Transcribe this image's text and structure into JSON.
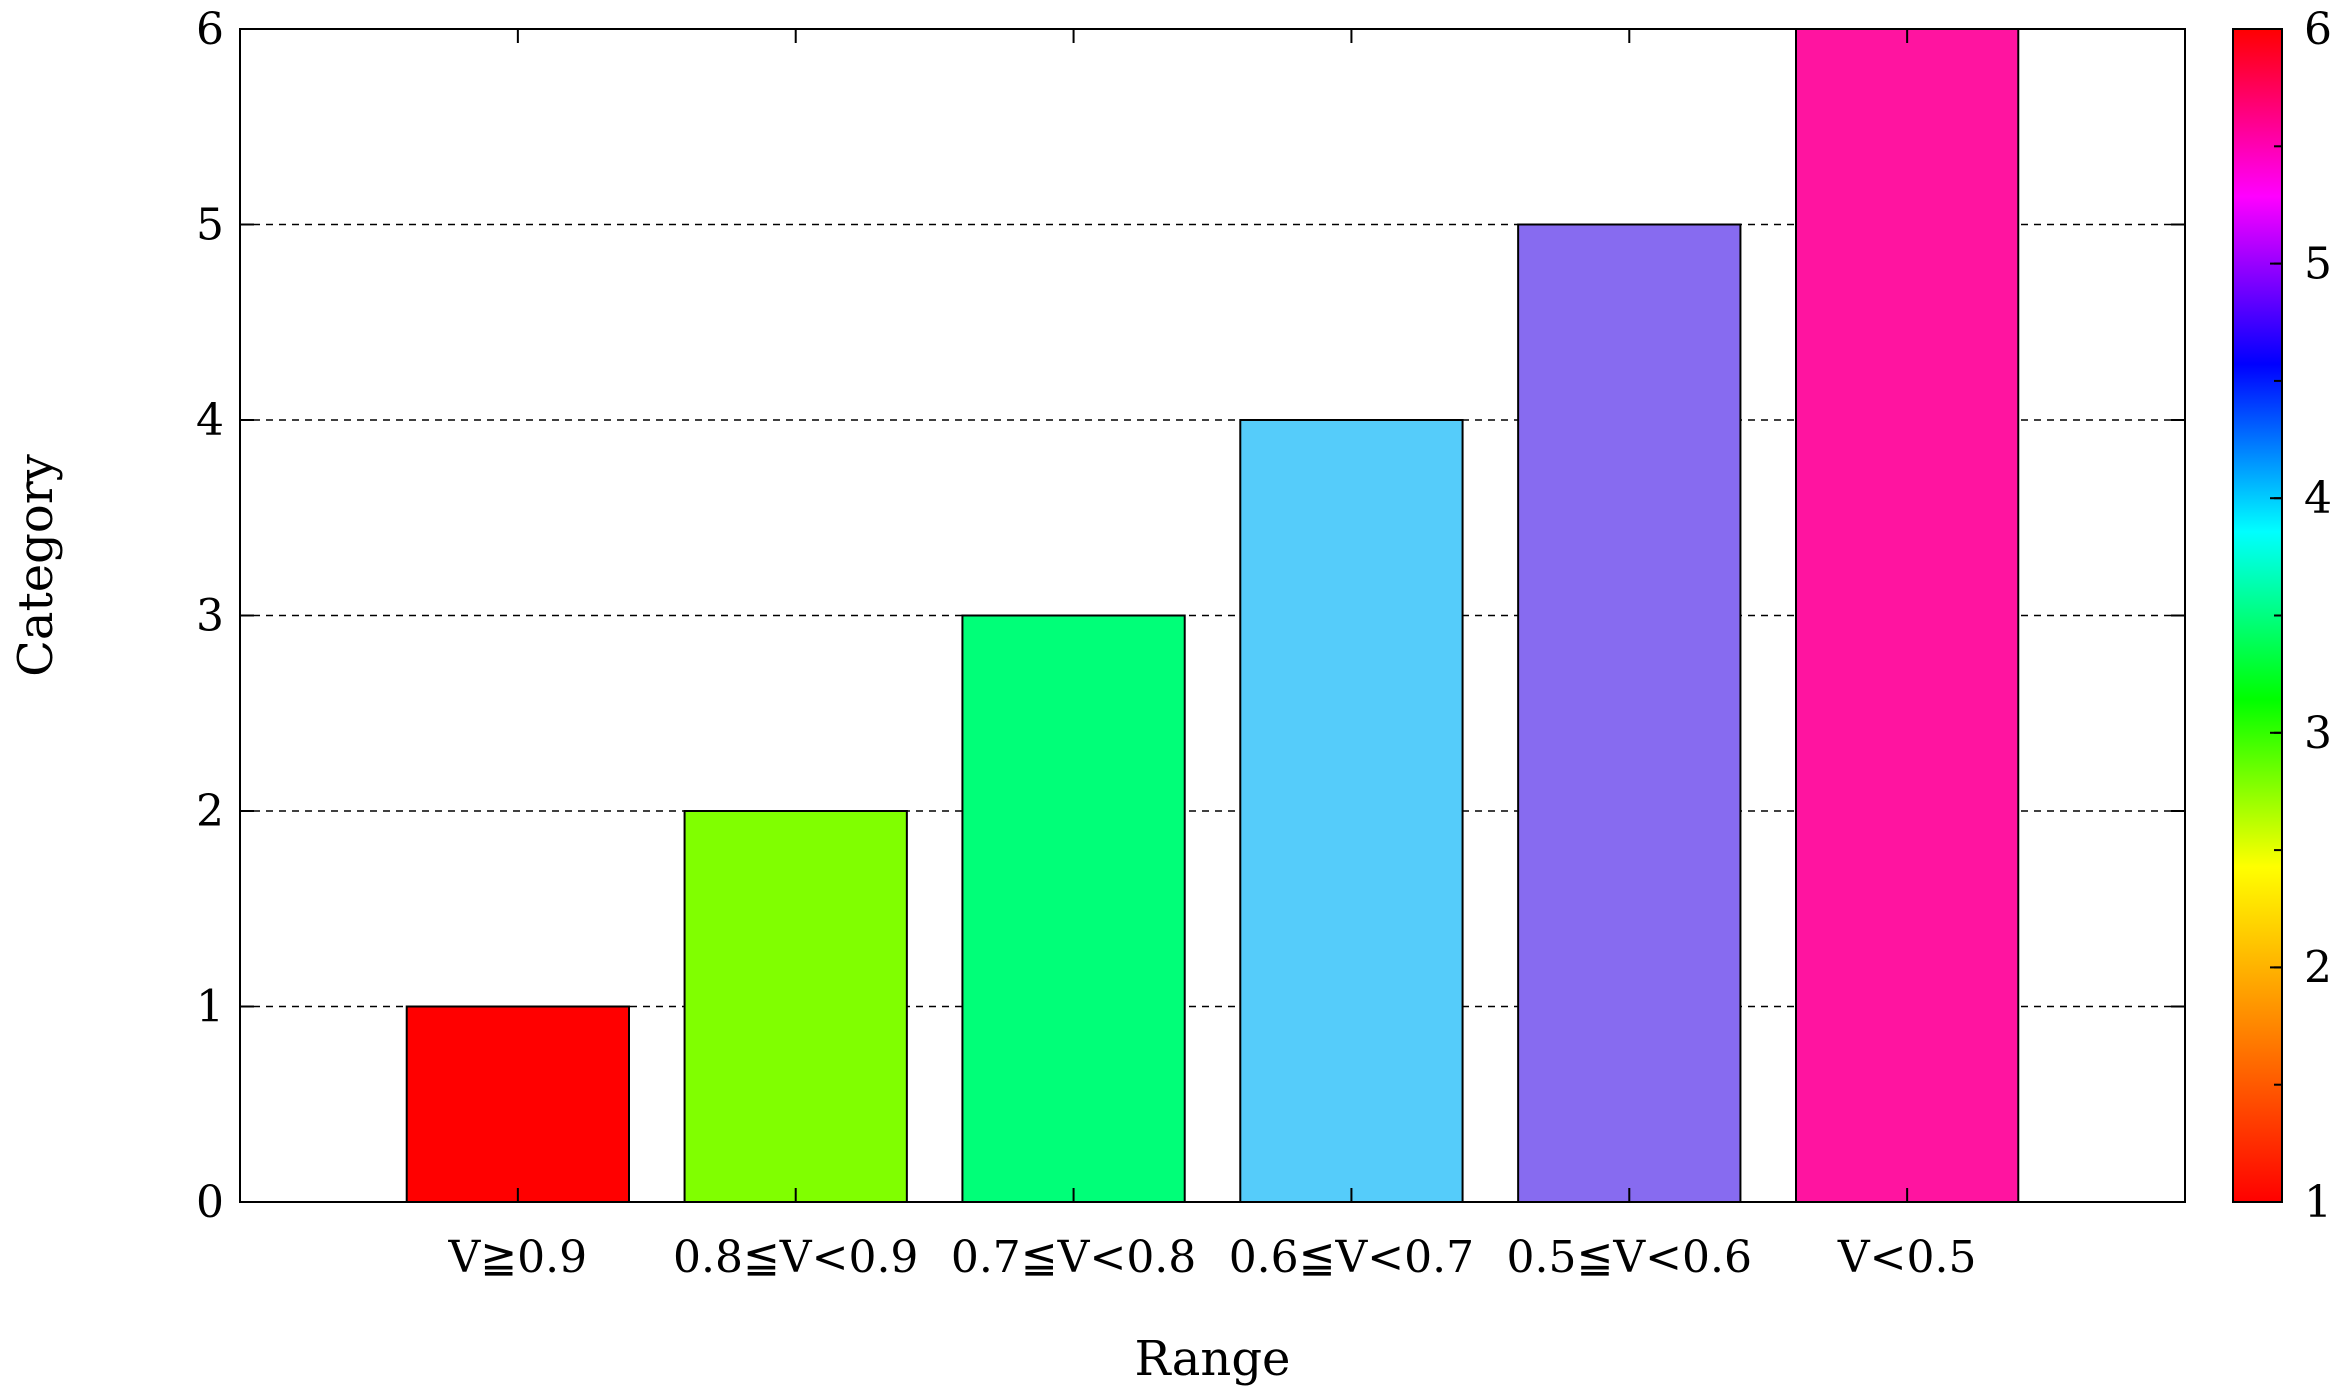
{
  "chart_data": {
    "type": "bar",
    "xlabel": "Range",
    "ylabel": "Category",
    "categories": [
      "V≧0.9",
      "0.8≦V<0.9",
      "0.7≦V<0.8",
      "0.6≦V<0.7",
      "0.5≦V<0.6",
      "V<0.5"
    ],
    "values": [
      1,
      2,
      3,
      4,
      5,
      6
    ],
    "bar_colors": [
      "#ff0000",
      "#80ff00",
      "#00ff78",
      "#55ccfa",
      "#876bf0",
      "#ff14a0"
    ],
    "ylim": [
      0,
      6
    ],
    "yticks": [
      "0",
      "1",
      "2",
      "3",
      "4",
      "5",
      "6"
    ],
    "grid": "y-dashed",
    "colorbar": {
      "ticks": [
        "1",
        "2",
        "3",
        "4",
        "5",
        "6"
      ],
      "range": [
        1,
        6
      ],
      "colors": [
        "#ff0000",
        "#ff8000",
        "#ffff00",
        "#00ff00",
        "#00ffff",
        "#0000ff",
        "#ff00ff",
        "#ff0000"
      ]
    }
  }
}
